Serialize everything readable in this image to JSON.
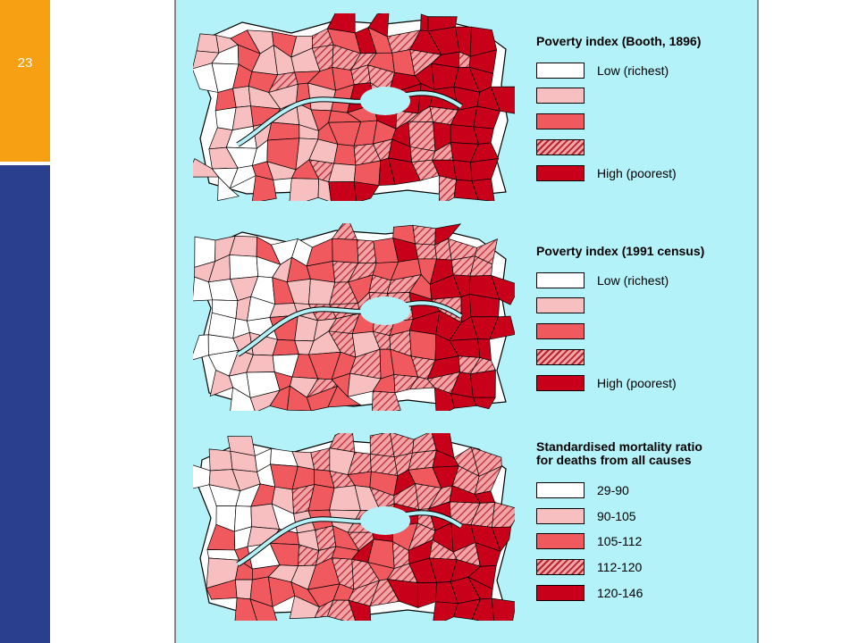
{
  "slide": {
    "number": "23"
  },
  "colors": {
    "c1": "#ffffff",
    "c2": "#f8bfc0",
    "c3": "#f05a5f",
    "c4_base": "#f3a3a6",
    "c4_hatch": "#b5252f",
    "c5": "#c8001a",
    "river": "#b3f2f8",
    "background": "#b3f2f8"
  },
  "panels": [
    {
      "title_lines": [
        "Poverty index (Booth, 1896)"
      ],
      "legend": [
        "Low (richest)",
        "",
        "",
        "",
        "High (poorest)"
      ]
    },
    {
      "title_lines": [
        "Poverty index (1991 census)"
      ],
      "legend": [
        "Low (richest)",
        "",
        "",
        "",
        "High (poorest)"
      ]
    },
    {
      "title_lines": [
        "Standardised mortality ratio",
        "for deaths from all causes"
      ],
      "legend": [
        "29-90",
        "90-105",
        "105-112",
        "112-120",
        "120-146"
      ]
    }
  ]
}
